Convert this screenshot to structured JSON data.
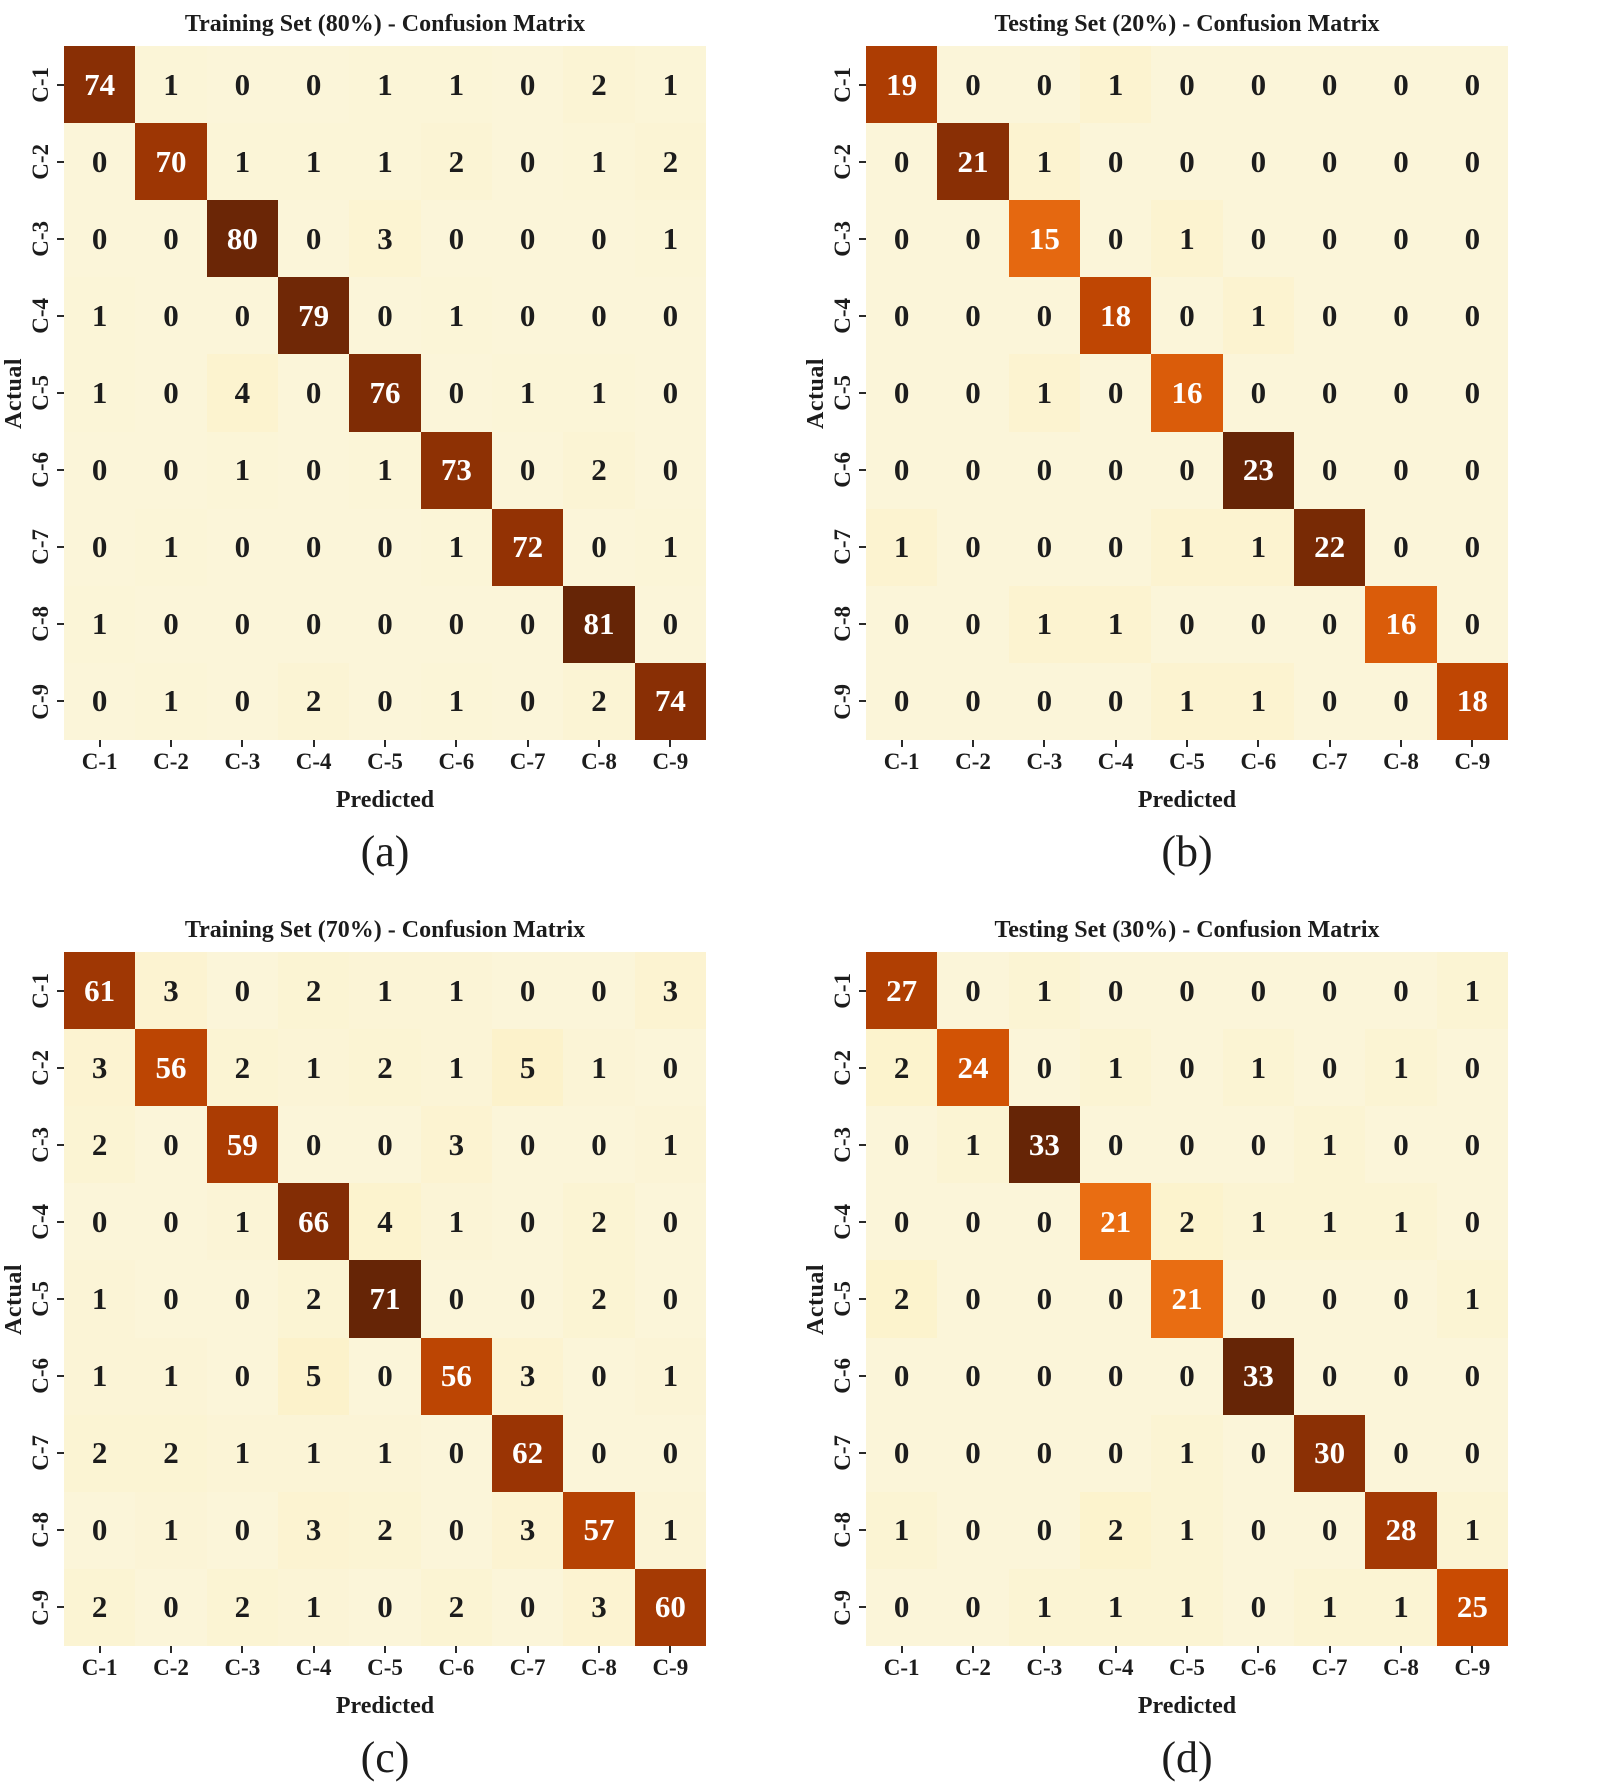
{
  "chart_data": [
    {
      "type": "heatmap",
      "title": "Training Set (80%) - Confusion Matrix",
      "caption": "(a)",
      "xlabel": "Predicted",
      "ylabel": "Actual",
      "x_categories": [
        "C-1",
        "C-2",
        "C-3",
        "C-4",
        "C-5",
        "C-6",
        "C-7",
        "C-8",
        "C-9"
      ],
      "y_categories": [
        "C-1",
        "C-2",
        "C-3",
        "C-4",
        "C-5",
        "C-6",
        "C-7",
        "C-8",
        "C-9"
      ],
      "values": [
        [
          74,
          1,
          0,
          0,
          1,
          1,
          0,
          2,
          1
        ],
        [
          0,
          70,
          1,
          1,
          1,
          2,
          0,
          1,
          2
        ],
        [
          0,
          0,
          80,
          0,
          3,
          0,
          0,
          0,
          1
        ],
        [
          1,
          0,
          0,
          79,
          0,
          1,
          0,
          0,
          0
        ],
        [
          1,
          0,
          4,
          0,
          76,
          0,
          1,
          1,
          0
        ],
        [
          0,
          0,
          1,
          0,
          1,
          73,
          0,
          2,
          0
        ],
        [
          0,
          1,
          0,
          0,
          0,
          1,
          72,
          0,
          1
        ],
        [
          1,
          0,
          0,
          0,
          0,
          0,
          0,
          81,
          0
        ],
        [
          0,
          1,
          0,
          2,
          0,
          1,
          0,
          2,
          74
        ]
      ],
      "value_range": [
        0,
        81
      ],
      "colormap": "YlOrBr",
      "grid": "off",
      "legend": "none"
    },
    {
      "type": "heatmap",
      "title": "Testing Set (20%) - Confusion Matrix",
      "caption": "(b)",
      "xlabel": "Predicted",
      "ylabel": "Actual",
      "x_categories": [
        "C-1",
        "C-2",
        "C-3",
        "C-4",
        "C-5",
        "C-6",
        "C-7",
        "C-8",
        "C-9"
      ],
      "y_categories": [
        "C-1",
        "C-2",
        "C-3",
        "C-4",
        "C-5",
        "C-6",
        "C-7",
        "C-8",
        "C-9"
      ],
      "values": [
        [
          19,
          0,
          0,
          1,
          0,
          0,
          0,
          0,
          0
        ],
        [
          0,
          21,
          1,
          0,
          0,
          0,
          0,
          0,
          0
        ],
        [
          0,
          0,
          15,
          0,
          1,
          0,
          0,
          0,
          0
        ],
        [
          0,
          0,
          0,
          18,
          0,
          1,
          0,
          0,
          0
        ],
        [
          0,
          0,
          1,
          0,
          16,
          0,
          0,
          0,
          0
        ],
        [
          0,
          0,
          0,
          0,
          0,
          23,
          0,
          0,
          0
        ],
        [
          1,
          0,
          0,
          0,
          1,
          1,
          22,
          0,
          0
        ],
        [
          0,
          0,
          1,
          1,
          0,
          0,
          0,
          16,
          0
        ],
        [
          0,
          0,
          0,
          0,
          1,
          1,
          0,
          0,
          18
        ]
      ],
      "value_range": [
        0,
        23
      ],
      "colormap": "YlOrBr",
      "grid": "off",
      "legend": "none"
    },
    {
      "type": "heatmap",
      "title": "Training Set (70%) - Confusion Matrix",
      "caption": "(c)",
      "xlabel": "Predicted",
      "ylabel": "Actual",
      "x_categories": [
        "C-1",
        "C-2",
        "C-3",
        "C-4",
        "C-5",
        "C-6",
        "C-7",
        "C-8",
        "C-9"
      ],
      "y_categories": [
        "C-1",
        "C-2",
        "C-3",
        "C-4",
        "C-5",
        "C-6",
        "C-7",
        "C-8",
        "C-9"
      ],
      "values": [
        [
          61,
          3,
          0,
          2,
          1,
          1,
          0,
          0,
          3
        ],
        [
          3,
          56,
          2,
          1,
          2,
          1,
          5,
          1,
          0
        ],
        [
          2,
          0,
          59,
          0,
          0,
          3,
          0,
          0,
          1
        ],
        [
          0,
          0,
          1,
          66,
          4,
          1,
          0,
          2,
          0
        ],
        [
          1,
          0,
          0,
          2,
          71,
          0,
          0,
          2,
          0
        ],
        [
          1,
          1,
          0,
          5,
          0,
          56,
          3,
          0,
          1
        ],
        [
          2,
          2,
          1,
          1,
          1,
          0,
          62,
          0,
          0
        ],
        [
          0,
          1,
          0,
          3,
          2,
          0,
          3,
          57,
          1
        ],
        [
          2,
          0,
          2,
          1,
          0,
          2,
          0,
          3,
          60
        ]
      ],
      "value_range": [
        0,
        71
      ],
      "colormap": "YlOrBr",
      "grid": "off",
      "legend": "none"
    },
    {
      "type": "heatmap",
      "title": "Testing Set (30%) - Confusion Matrix",
      "caption": "(d)",
      "xlabel": "Predicted",
      "ylabel": "Actual",
      "x_categories": [
        "C-1",
        "C-2",
        "C-3",
        "C-4",
        "C-5",
        "C-6",
        "C-7",
        "C-8",
        "C-9"
      ],
      "y_categories": [
        "C-1",
        "C-2",
        "C-3",
        "C-4",
        "C-5",
        "C-6",
        "C-7",
        "C-8",
        "C-9"
      ],
      "values": [
        [
          27,
          0,
          1,
          0,
          0,
          0,
          0,
          0,
          1
        ],
        [
          2,
          24,
          0,
          1,
          0,
          1,
          0,
          1,
          0
        ],
        [
          0,
          1,
          33,
          0,
          0,
          0,
          1,
          0,
          0
        ],
        [
          0,
          0,
          0,
          21,
          2,
          1,
          1,
          1,
          0
        ],
        [
          2,
          0,
          0,
          0,
          21,
          0,
          0,
          0,
          1
        ],
        [
          0,
          0,
          0,
          0,
          0,
          33,
          0,
          0,
          0
        ],
        [
          0,
          0,
          0,
          0,
          1,
          0,
          30,
          0,
          0
        ],
        [
          1,
          0,
          0,
          2,
          1,
          0,
          0,
          28,
          1
        ],
        [
          0,
          0,
          1,
          1,
          1,
          0,
          1,
          1,
          25
        ]
      ],
      "value_range": [
        0,
        33
      ],
      "colormap": "YlOrBr",
      "grid": "off",
      "legend": "none"
    }
  ],
  "colors": {
    "figure_background": "#ffffff",
    "text": "#1c1c1c",
    "tick_mark": "#2a2a2a",
    "cell_text_light": "#ffffff",
    "cell_text_dark": "#1c1c1c",
    "colormap_stops": [
      "#fbf5d9",
      "#fdf0c0",
      "#fee391",
      "#fec44f",
      "#fe9929",
      "#ec7014",
      "#cc4c02",
      "#993404",
      "#662506"
    ]
  }
}
